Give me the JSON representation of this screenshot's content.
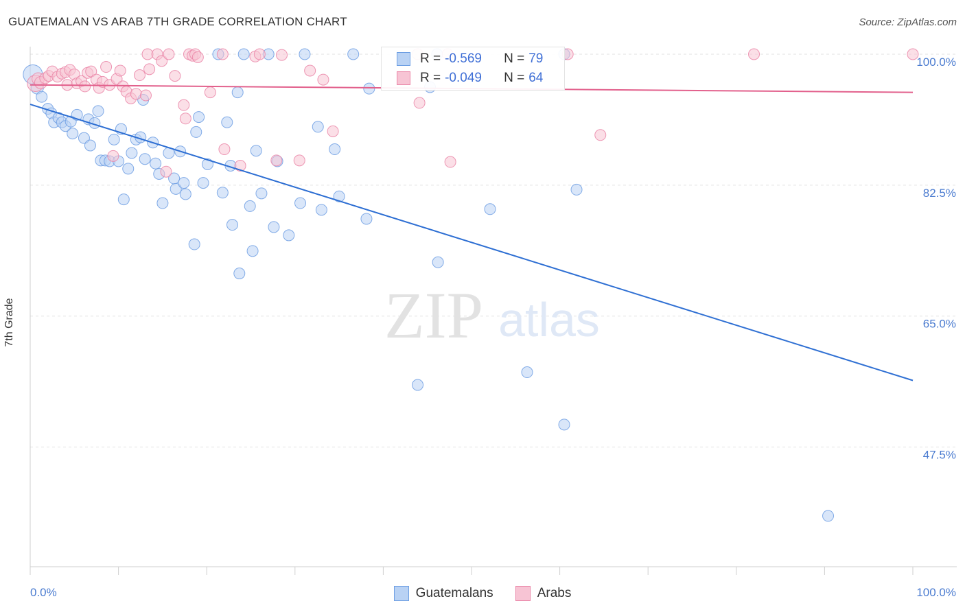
{
  "title": "GUATEMALAN VS ARAB 7TH GRADE CORRELATION CHART",
  "source": "Source: ZipAtlas.com",
  "watermark": {
    "zip": "ZIP",
    "atlas": "atlas"
  },
  "legend": {
    "r_label": "R =",
    "n_label": "N =",
    "rows": [
      {
        "series": "Guatemalans",
        "r": "-0.569",
        "n": "79",
        "color": "#6d9ee3",
        "fill": "#b9d2f4"
      },
      {
        "series": "Arabs",
        "r": "-0.049",
        "n": "64",
        "color": "#ea85a7",
        "fill": "#f7c4d4"
      }
    ]
  },
  "bottom_legend": [
    "Guatemalans",
    "Arabs"
  ],
  "chart_data": {
    "type": "scatter",
    "title": "GUATEMALAN VS ARAB 7TH GRADE CORRELATION CHART",
    "ylabel": "7th Grade",
    "xlabel": "",
    "xlim": [
      0,
      100
    ],
    "ylim": [
      30,
      101
    ],
    "x_ticks": [
      "0.0%",
      "100.0%"
    ],
    "y_ticks": [
      {
        "value": 100.0,
        "label": "100.0%"
      },
      {
        "value": 82.5,
        "label": "82.5%"
      },
      {
        "value": 65.0,
        "label": "65.0%"
      },
      {
        "value": 47.5,
        "label": "47.5%"
      }
    ],
    "grid": true,
    "legend_position": "top-center",
    "series": [
      {
        "name": "Guatemalans",
        "color": "#6d9ee3",
        "trend": {
          "x": [
            0,
            100
          ],
          "y": [
            93.3,
            56.4
          ]
        },
        "points": [
          [
            0.3,
            97.3,
            14
          ],
          [
            0.8,
            95.5,
            9
          ],
          [
            1.3,
            94.3,
            8
          ],
          [
            2.0,
            92.7,
            8
          ],
          [
            2.4,
            92.1,
            8
          ],
          [
            2.7,
            90.9,
            8
          ],
          [
            3.2,
            91.5,
            8
          ],
          [
            3.6,
            90.9,
            8
          ],
          [
            4.0,
            90.4,
            8
          ],
          [
            4.6,
            91.0,
            8
          ],
          [
            4.8,
            89.4,
            8
          ],
          [
            5.3,
            91.9,
            8
          ],
          [
            6.1,
            88.8,
            8
          ],
          [
            6.6,
            91.3,
            8
          ],
          [
            6.8,
            87.8,
            8
          ],
          [
            7.3,
            90.8,
            8
          ],
          [
            7.7,
            92.4,
            8
          ],
          [
            8.0,
            85.8,
            8
          ],
          [
            8.5,
            85.8,
            8
          ],
          [
            9.0,
            85.7,
            8
          ],
          [
            9.5,
            88.6,
            8
          ],
          [
            10.0,
            85.7,
            8
          ],
          [
            10.3,
            90.0,
            8
          ],
          [
            10.6,
            80.6,
            8
          ],
          [
            11.1,
            84.7,
            8
          ],
          [
            11.5,
            86.8,
            8
          ],
          [
            12.0,
            88.6,
            8
          ],
          [
            12.5,
            88.9,
            8
          ],
          [
            12.8,
            93.9,
            8
          ],
          [
            13.0,
            86.0,
            8
          ],
          [
            13.9,
            88.2,
            8
          ],
          [
            14.2,
            85.4,
            8
          ],
          [
            14.6,
            84.0,
            8
          ],
          [
            15.0,
            80.1,
            8
          ],
          [
            15.7,
            86.8,
            8
          ],
          [
            16.3,
            83.4,
            8
          ],
          [
            16.5,
            82.0,
            8
          ],
          [
            17.0,
            87.0,
            8
          ],
          [
            17.4,
            82.8,
            8
          ],
          [
            17.6,
            81.3,
            8
          ],
          [
            18.6,
            74.6,
            8
          ],
          [
            18.8,
            89.6,
            8
          ],
          [
            19.1,
            91.6,
            8
          ],
          [
            19.6,
            82.8,
            8
          ],
          [
            20.1,
            85.3,
            8
          ],
          [
            21.3,
            100.0,
            8
          ],
          [
            21.8,
            81.5,
            8
          ],
          [
            22.3,
            90.9,
            8
          ],
          [
            22.7,
            85.1,
            8
          ],
          [
            22.9,
            77.2,
            8
          ],
          [
            23.5,
            94.9,
            8
          ],
          [
            23.7,
            70.7,
            8
          ],
          [
            24.2,
            100.0,
            8
          ],
          [
            24.9,
            79.7,
            8
          ],
          [
            25.2,
            73.7,
            8
          ],
          [
            25.6,
            87.1,
            8
          ],
          [
            26.2,
            81.4,
            8
          ],
          [
            27.0,
            100.0,
            8
          ],
          [
            27.6,
            76.9,
            8
          ],
          [
            28.0,
            85.7,
            8
          ],
          [
            29.3,
            75.8,
            8
          ],
          [
            30.6,
            80.1,
            8
          ],
          [
            31.1,
            100.0,
            8
          ],
          [
            32.6,
            90.3,
            8
          ],
          [
            33.0,
            79.2,
            8
          ],
          [
            34.5,
            87.3,
            8
          ],
          [
            35.0,
            81.0,
            8
          ],
          [
            36.6,
            100.0,
            8
          ],
          [
            38.1,
            78.0,
            8
          ],
          [
            38.4,
            95.4,
            8
          ],
          [
            43.9,
            55.8,
            8
          ],
          [
            45.3,
            95.6,
            8
          ],
          [
            46.1,
            100.0,
            8
          ],
          [
            46.2,
            72.2,
            8
          ],
          [
            52.1,
            79.3,
            8
          ],
          [
            56.3,
            57.5,
            8
          ],
          [
            60.5,
            100.0,
            8
          ],
          [
            60.5,
            50.5,
            8
          ],
          [
            61.9,
            81.9,
            8
          ],
          [
            90.4,
            38.3,
            8
          ]
        ]
      },
      {
        "name": "Arabs",
        "color": "#ea85a7",
        "trend": {
          "x": [
            0,
            100
          ],
          "y": [
            95.9,
            94.9
          ]
        },
        "points": [
          [
            0.6,
            96.1,
            12
          ],
          [
            0.9,
            96.7,
            9
          ],
          [
            1.2,
            96.2,
            9
          ],
          [
            1.7,
            96.8,
            8
          ],
          [
            2.1,
            97.1,
            8
          ],
          [
            2.5,
            97.7,
            8
          ],
          [
            3.1,
            97.0,
            8
          ],
          [
            3.6,
            97.4,
            8
          ],
          [
            4.0,
            97.6,
            8
          ],
          [
            4.2,
            95.9,
            8
          ],
          [
            4.5,
            97.9,
            8
          ],
          [
            5.0,
            97.3,
            8
          ],
          [
            5.3,
            96.1,
            8
          ],
          [
            5.8,
            96.4,
            8
          ],
          [
            6.2,
            95.7,
            8
          ],
          [
            6.5,
            97.5,
            8
          ],
          [
            6.9,
            97.7,
            8
          ],
          [
            7.5,
            96.6,
            8
          ],
          [
            7.8,
            95.5,
            8
          ],
          [
            8.2,
            96.3,
            8
          ],
          [
            8.6,
            98.3,
            8
          ],
          [
            9.0,
            95.9,
            8
          ],
          [
            9.4,
            86.4,
            8
          ],
          [
            9.8,
            96.7,
            8
          ],
          [
            10.2,
            97.8,
            8
          ],
          [
            10.5,
            95.7,
            8
          ],
          [
            10.9,
            95.0,
            8
          ],
          [
            11.4,
            94.1,
            8
          ],
          [
            12.0,
            94.7,
            8
          ],
          [
            12.4,
            97.2,
            8
          ],
          [
            13.1,
            94.5,
            8
          ],
          [
            13.5,
            98.0,
            8
          ],
          [
            13.3,
            100.0,
            8
          ],
          [
            14.4,
            100.0,
            8
          ],
          [
            14.9,
            99.1,
            8
          ],
          [
            15.4,
            84.3,
            8
          ],
          [
            15.7,
            100.0,
            8
          ],
          [
            16.4,
            97.1,
            8
          ],
          [
            17.4,
            93.2,
            8
          ],
          [
            17.6,
            91.4,
            8
          ],
          [
            18.0,
            100.0,
            8
          ],
          [
            18.4,
            99.8,
            8
          ],
          [
            18.7,
            100.0,
            8
          ],
          [
            19.0,
            99.6,
            8
          ],
          [
            20.4,
            94.9,
            8
          ],
          [
            21.8,
            100.0,
            8
          ],
          [
            22.0,
            87.3,
            8
          ],
          [
            23.8,
            85.1,
            8
          ],
          [
            25.5,
            99.7,
            8
          ],
          [
            26.0,
            100.0,
            8
          ],
          [
            27.9,
            85.8,
            8
          ],
          [
            28.5,
            99.9,
            8
          ],
          [
            30.5,
            85.8,
            8
          ],
          [
            31.7,
            97.8,
            8
          ],
          [
            33.2,
            96.6,
            8
          ],
          [
            34.3,
            89.7,
            8
          ],
          [
            43.9,
            100.0,
            8
          ],
          [
            44.1,
            93.5,
            8
          ],
          [
            47.3,
            100.0,
            8
          ],
          [
            47.6,
            85.6,
            8
          ],
          [
            60.9,
            100.0,
            8
          ],
          [
            64.6,
            89.2,
            8
          ],
          [
            82.0,
            100.0,
            8
          ],
          [
            100.0,
            100.0,
            8
          ]
        ]
      }
    ]
  }
}
